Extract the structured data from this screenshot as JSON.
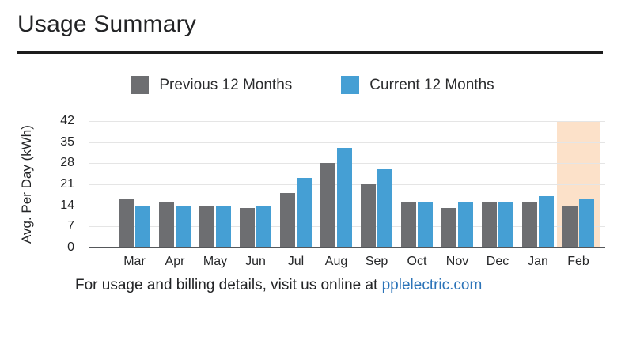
{
  "page": {
    "title": "Usage Summary"
  },
  "legend": {
    "previous_label": "Previous 12 Months",
    "current_label": "Current 12 Months"
  },
  "footer": {
    "text": "For usage and billing details, visit us online at ",
    "link": "pplelectric.com"
  },
  "colors": {
    "previous_series": "#6d6e71",
    "current_series": "#459fd4",
    "highlight_band": "#fce1c9",
    "gridline": "#e5e5e5",
    "axis_line": "#55575a",
    "link": "#2b73b8"
  },
  "chart_data": {
    "type": "bar",
    "title": "Usage Summary",
    "xlabel": "",
    "ylabel": "Avg. Per Day (kWh)",
    "categories": [
      "Mar",
      "Apr",
      "May",
      "Jun",
      "Jul",
      "Aug",
      "Sep",
      "Oct",
      "Nov",
      "Dec",
      "Jan",
      "Feb"
    ],
    "series": [
      {
        "name": "Previous 12 Months",
        "color": "#6d6e71",
        "values": [
          16,
          15,
          14,
          13,
          18,
          28,
          21,
          15,
          13,
          15,
          15,
          14
        ]
      },
      {
        "name": "Current 12 Months",
        "color": "#459fd4",
        "values": [
          14,
          14,
          14,
          14,
          23,
          33,
          26,
          15,
          15,
          15,
          17,
          16
        ]
      }
    ],
    "ylim": [
      0,
      42
    ],
    "yticks": [
      0,
      7,
      14,
      21,
      28,
      35,
      42
    ],
    "grid": true,
    "legend_position": "top-center",
    "highlight": {
      "category": "Feb",
      "color": "#fce1c9"
    },
    "divider_after_category": "Dec"
  }
}
